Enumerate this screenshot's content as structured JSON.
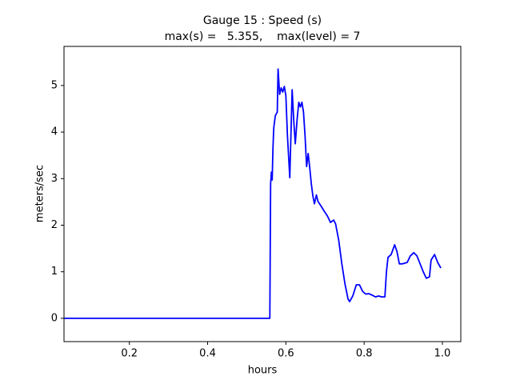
{
  "chart_data": {
    "type": "line",
    "title": "Gauge 15 : Speed (s)",
    "subtitle": "max(s) =   5.355,    max(level) = 7",
    "xlabel": "hours",
    "ylabel": "meters/sec",
    "xlim": [
      0.033,
      1.047
    ],
    "ylim": [
      -0.5,
      5.84
    ],
    "xticks": [
      0.2,
      0.4,
      0.6,
      0.8,
      {
        "value": 1,
        "label": "1.0"
      }
    ],
    "yticks": [
      0,
      1,
      2,
      3,
      4,
      5
    ],
    "series": [
      {
        "color": "#0000ff",
        "x": [
          0.033,
          0.559,
          0.561,
          0.563,
          0.565,
          0.567,
          0.569,
          0.573,
          0.578,
          0.58,
          0.584,
          0.588,
          0.592,
          0.596,
          0.6,
          0.604,
          0.61,
          0.616,
          0.62,
          0.624,
          0.629,
          0.633,
          0.637,
          0.641,
          0.645,
          0.649,
          0.653,
          0.657,
          0.661,
          0.665,
          0.669,
          0.673,
          0.678,
          0.682,
          0.69,
          0.698,
          0.706,
          0.714,
          0.722,
          0.727,
          0.735,
          0.743,
          0.751,
          0.759,
          0.763,
          0.771,
          0.78,
          0.788,
          0.796,
          0.804,
          0.812,
          0.82,
          0.829,
          0.837,
          0.845,
          0.853,
          0.857,
          0.861,
          0.869,
          0.878,
          0.884,
          0.89,
          0.898,
          0.91,
          0.918,
          0.927,
          0.935,
          0.943,
          0.951,
          0.959,
          0.967,
          0.971,
          0.98,
          0.988,
          0.996
        ],
        "values": [
          0,
          0,
          2.89,
          3.14,
          2.97,
          3.66,
          4.09,
          4.35,
          4.43,
          5.355,
          4.81,
          4.95,
          4.86,
          4.98,
          4.78,
          3.92,
          3.02,
          4.91,
          4.26,
          3.75,
          4.3,
          4.64,
          4.54,
          4.64,
          4.43,
          3.92,
          3.26,
          3.54,
          3.23,
          2.89,
          2.63,
          2.46,
          2.65,
          2.51,
          2.41,
          2.3,
          2.2,
          2.06,
          2.11,
          2.03,
          1.68,
          1.17,
          0.74,
          0.41,
          0.36,
          0.48,
          0.72,
          0.72,
          0.58,
          0.52,
          0.53,
          0.5,
          0.46,
          0.48,
          0.46,
          0.46,
          1.0,
          1.31,
          1.37,
          1.58,
          1.43,
          1.17,
          1.17,
          1.2,
          1.34,
          1.41,
          1.34,
          1.17,
          1.0,
          0.86,
          0.89,
          1.25,
          1.37,
          1.2,
          1.08
        ]
      }
    ]
  }
}
